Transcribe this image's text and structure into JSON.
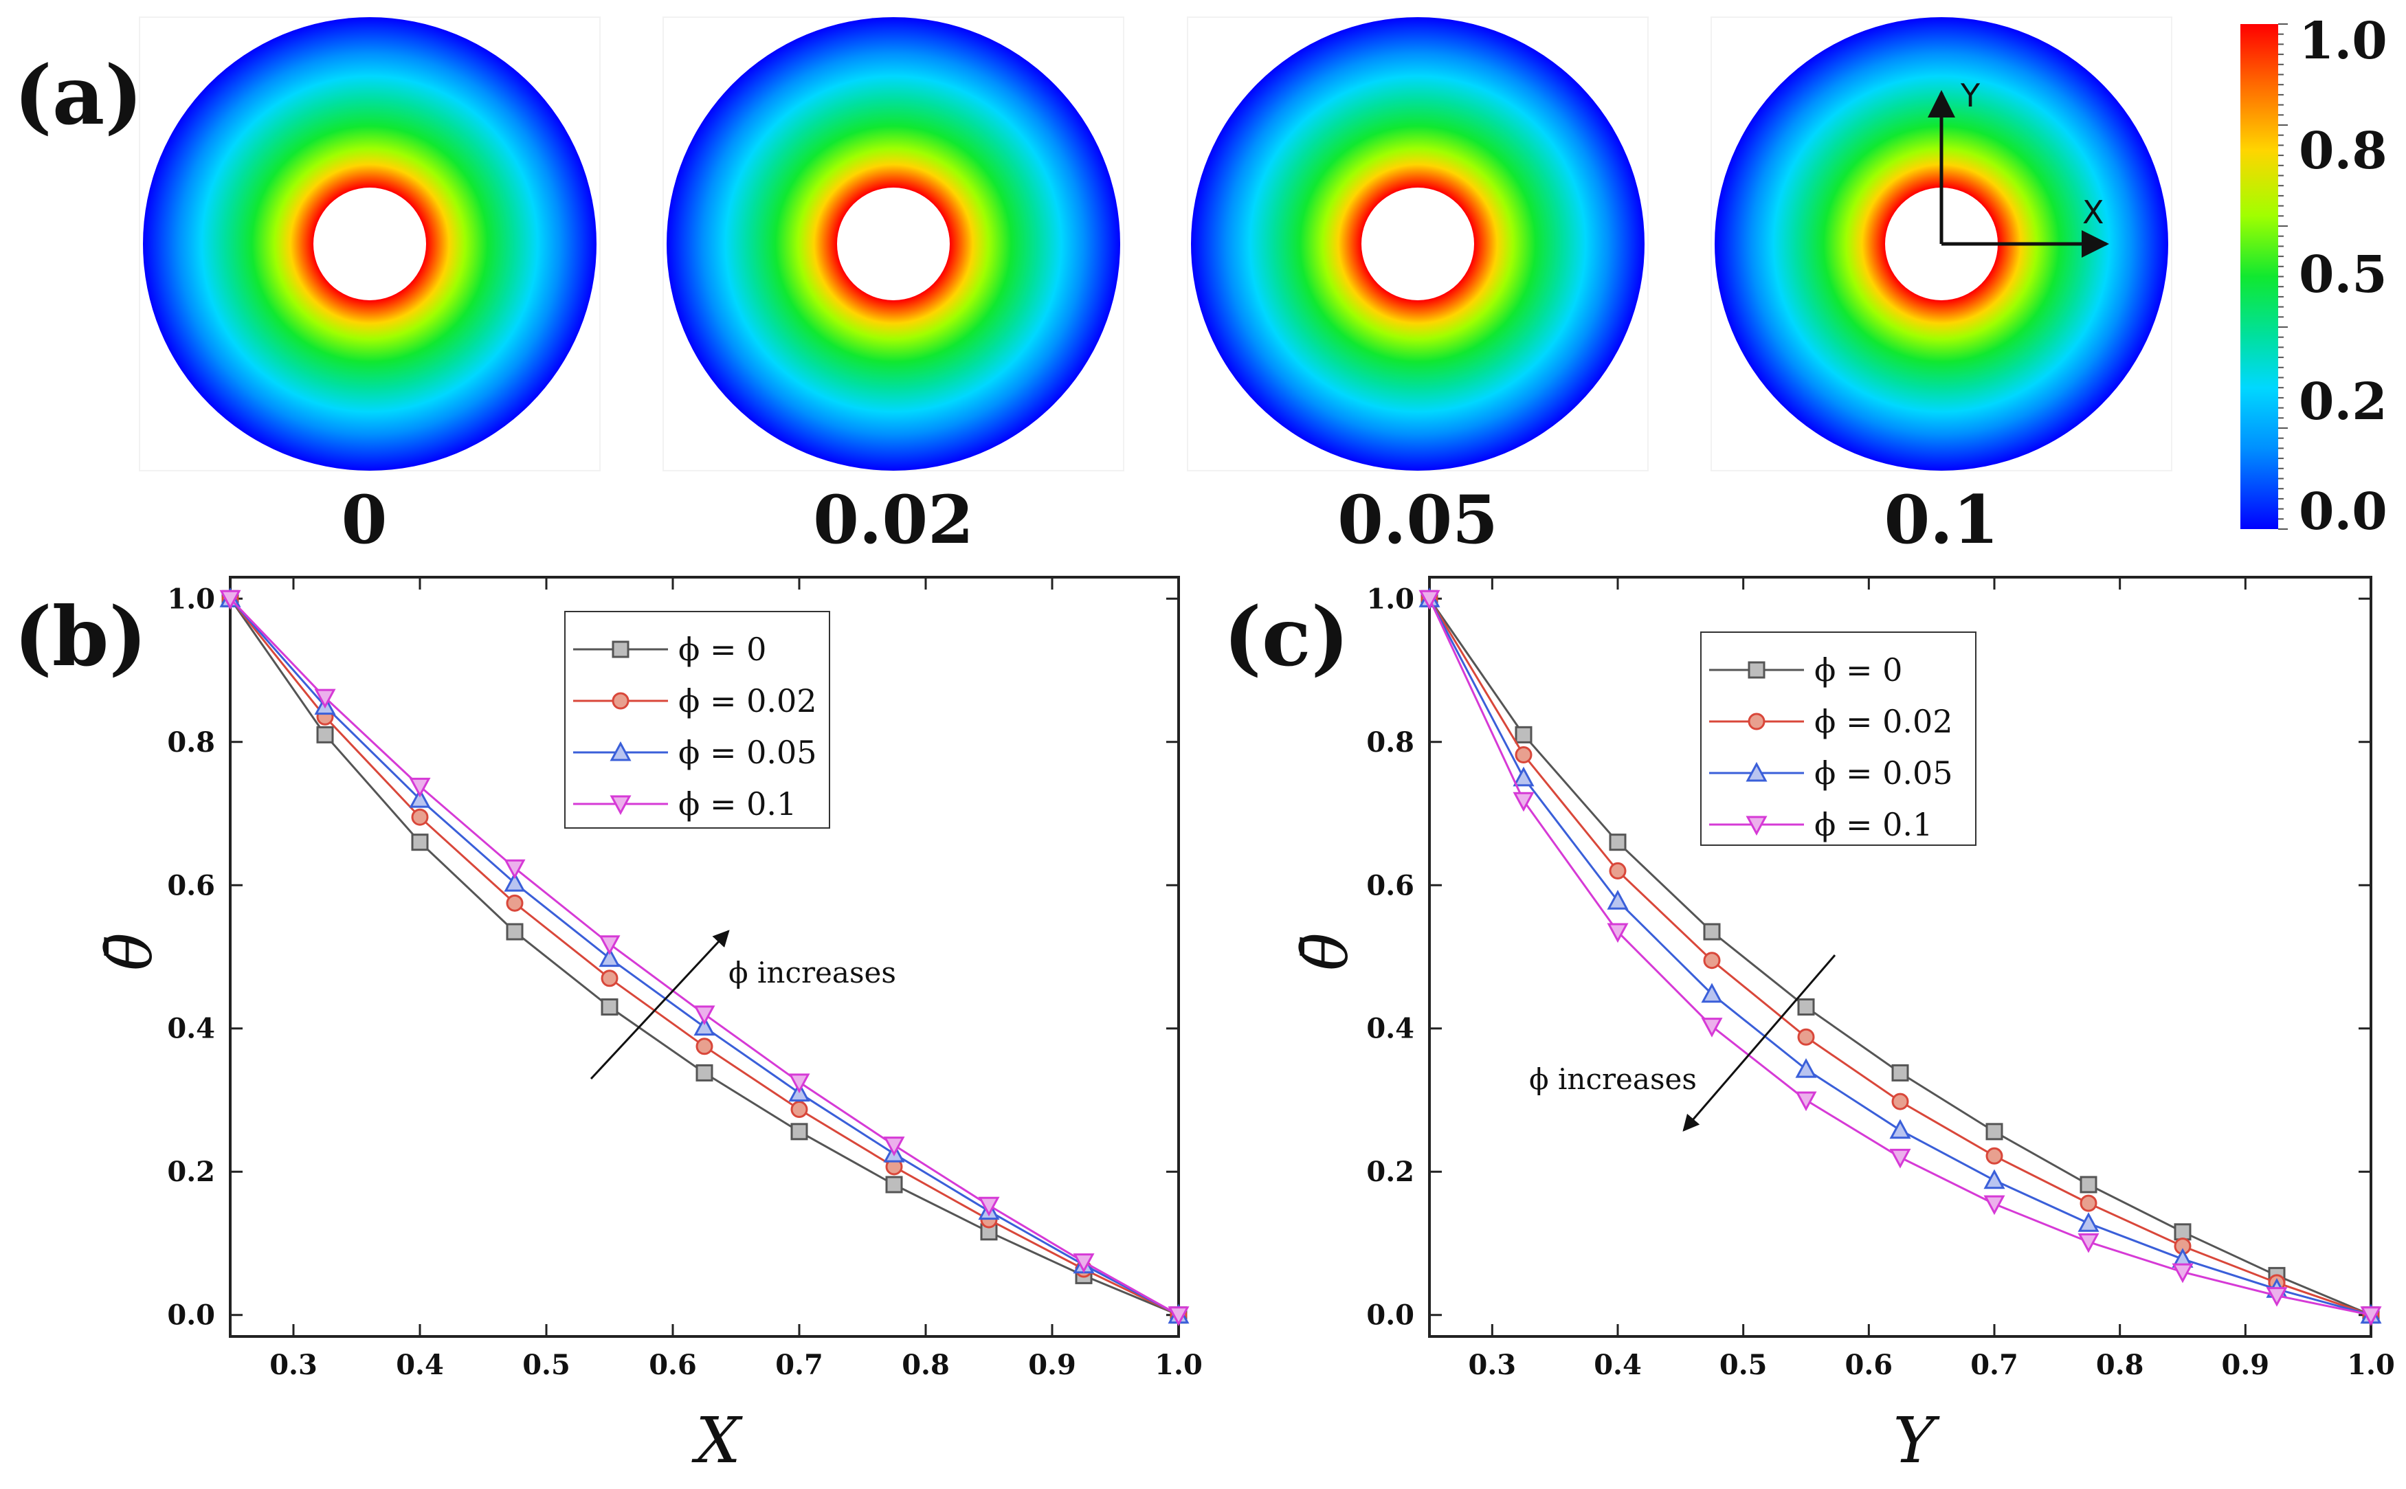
{
  "panel_a": {
    "label": "(a)",
    "cases": [
      {
        "phi_label": "0"
      },
      {
        "phi_label": "0.02"
      },
      {
        "phi_label": "0.05"
      },
      {
        "phi_label": "0.1"
      }
    ],
    "axis_labels": {
      "x": "X",
      "y": "Y"
    },
    "colorbar": {
      "ticks": [
        "1.0",
        "0.8",
        "0.5",
        "0.2",
        "0.0"
      ]
    }
  },
  "colors": {
    "phi_0": "#555555",
    "phi_0_02": "#d9473a",
    "phi_0_05": "#3a5fd9",
    "phi_0_1": "#d63ad6",
    "frame": "#222222",
    "marker_fill": "#bdbdbd"
  },
  "chart_data": [
    {
      "type": "line",
      "panel_label": "(b)",
      "xlabel": "X",
      "ylabel": "θ̄",
      "xlim": [
        0.25,
        1.0
      ],
      "ylim": [
        -0.03,
        1.03
      ],
      "x_ticks": [
        "0.3",
        "0.4",
        "0.5",
        "0.6",
        "0.7",
        "0.8",
        "0.9",
        "1.0"
      ],
      "y_ticks": [
        "0.0",
        "0.2",
        "0.4",
        "0.6",
        "0.8",
        "1.0"
      ],
      "annotation": "ϕ increases",
      "legend_position": "top-center",
      "x": [
        0.25,
        0.325,
        0.4,
        0.475,
        0.55,
        0.625,
        0.7,
        0.775,
        0.85,
        0.925,
        1.0
      ],
      "series": [
        {
          "name": "ϕ = 0",
          "values": [
            1.0,
            0.81,
            0.66,
            0.535,
            0.43,
            0.338,
            0.256,
            0.182,
            0.116,
            0.055,
            0.0
          ]
        },
        {
          "name": "ϕ = 0.02",
          "values": [
            1.0,
            0.835,
            0.695,
            0.575,
            0.47,
            0.375,
            0.287,
            0.207,
            0.133,
            0.064,
            0.0
          ]
        },
        {
          "name": "ϕ = 0.05",
          "values": [
            1.0,
            0.85,
            0.72,
            0.603,
            0.498,
            0.402,
            0.31,
            0.225,
            0.145,
            0.07,
            0.0
          ]
        },
        {
          "name": "ϕ = 0.1",
          "values": [
            1.0,
            0.862,
            0.738,
            0.624,
            0.518,
            0.42,
            0.325,
            0.237,
            0.153,
            0.074,
            0.0
          ]
        }
      ]
    },
    {
      "type": "line",
      "panel_label": "(c)",
      "xlabel": "Y",
      "ylabel": "θ̄",
      "xlim": [
        0.25,
        1.0
      ],
      "ylim": [
        -0.03,
        1.03
      ],
      "x_ticks": [
        "0.3",
        "0.4",
        "0.5",
        "0.6",
        "0.7",
        "0.8",
        "0.9",
        "1.0"
      ],
      "y_ticks": [
        "0.0",
        "0.2",
        "0.4",
        "0.6",
        "0.8",
        "1.0"
      ],
      "annotation": "ϕ increases",
      "legend_position": "top-center",
      "x": [
        0.25,
        0.325,
        0.4,
        0.475,
        0.55,
        0.625,
        0.7,
        0.775,
        0.85,
        0.925,
        1.0
      ],
      "series": [
        {
          "name": "ϕ = 0",
          "values": [
            1.0,
            0.81,
            0.66,
            0.535,
            0.43,
            0.338,
            0.256,
            0.182,
            0.116,
            0.055,
            0.0
          ]
        },
        {
          "name": "ϕ = 0.02",
          "values": [
            1.0,
            0.782,
            0.62,
            0.495,
            0.388,
            0.298,
            0.222,
            0.156,
            0.096,
            0.045,
            0.0
          ]
        },
        {
          "name": "ϕ = 0.05",
          "values": [
            1.0,
            0.75,
            0.578,
            0.448,
            0.343,
            0.258,
            0.188,
            0.128,
            0.078,
            0.036,
            0.0
          ]
        },
        {
          "name": "ϕ = 0.1",
          "values": [
            1.0,
            0.718,
            0.535,
            0.403,
            0.3,
            0.22,
            0.155,
            0.102,
            0.06,
            0.027,
            0.0
          ]
        }
      ]
    }
  ]
}
